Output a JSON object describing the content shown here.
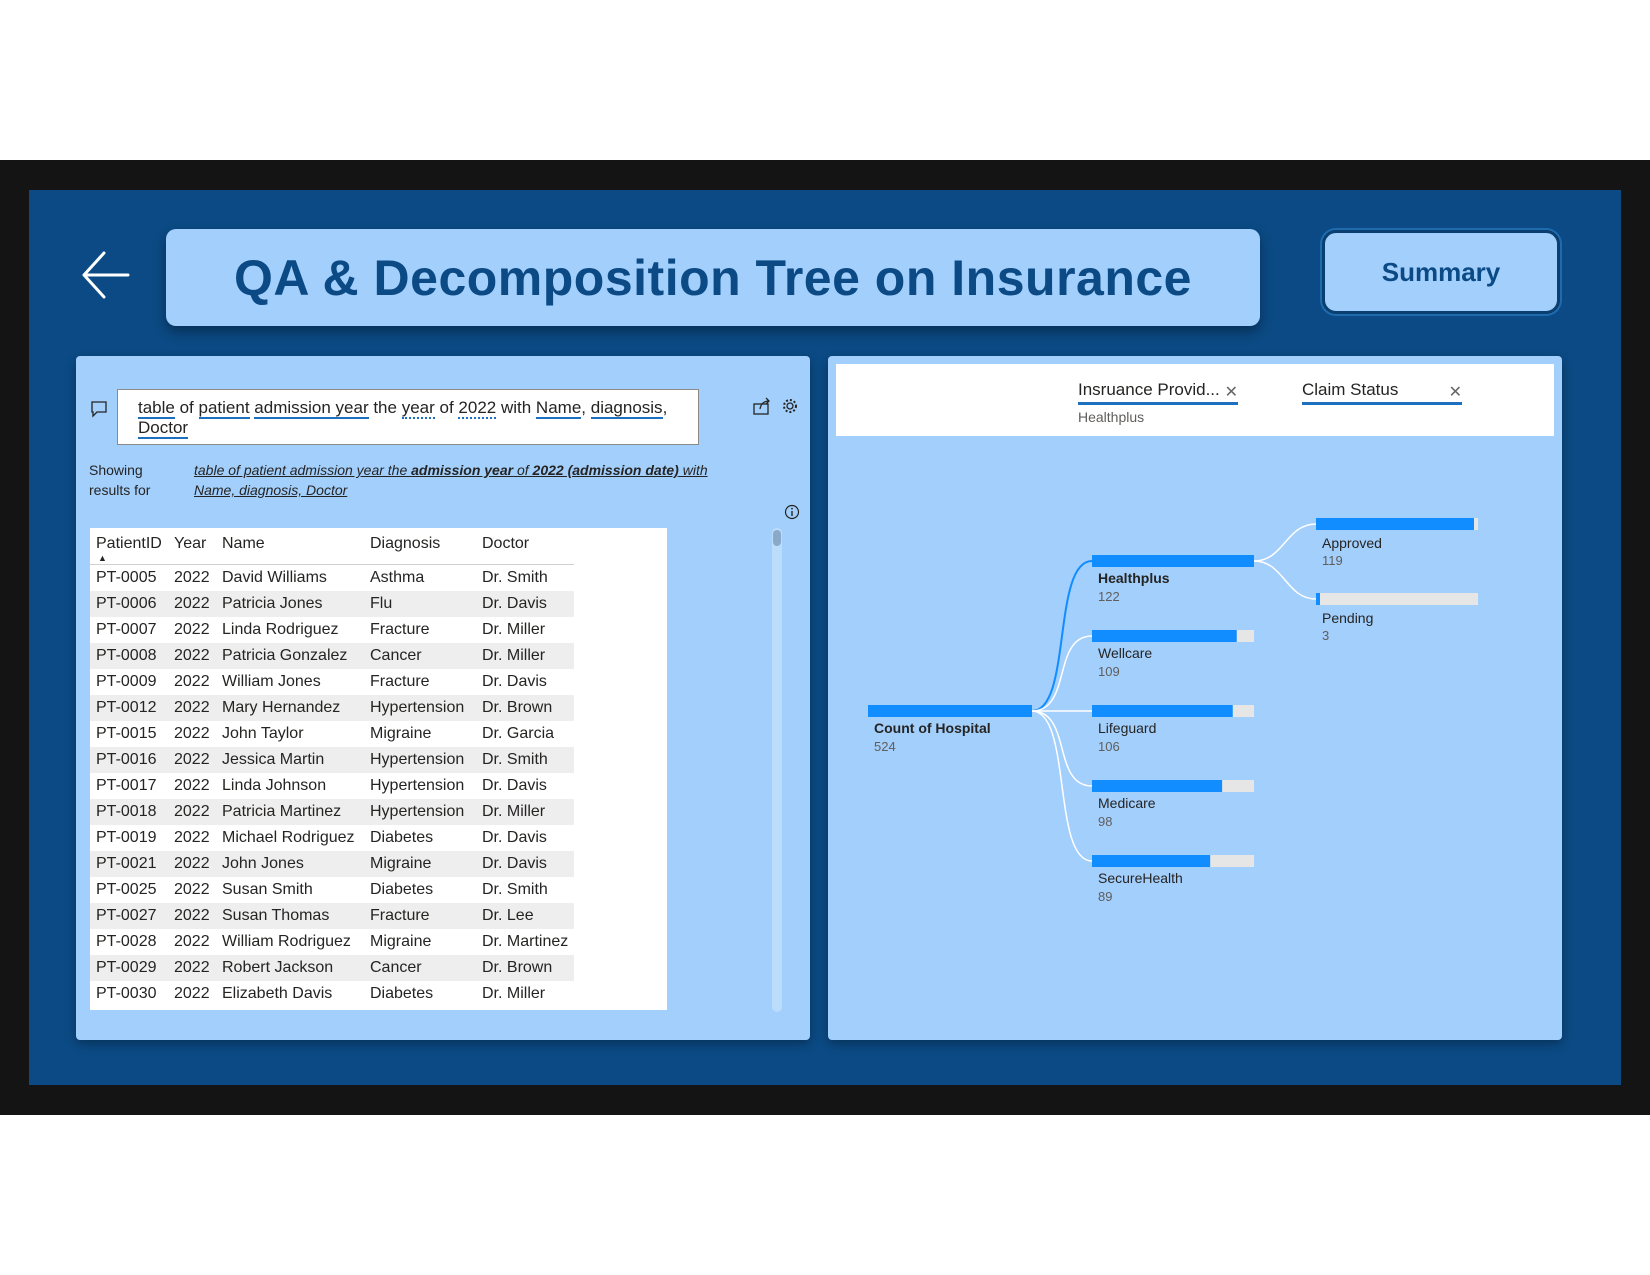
{
  "title": "QA & Decomposition Tree on Insurance",
  "summary_button": "Summary",
  "qa": {
    "query_parts": [
      {
        "text": "table",
        "style": "u"
      },
      {
        "text": " of ",
        "style": ""
      },
      {
        "text": "patient",
        "style": "u"
      },
      {
        "text": " ",
        "style": ""
      },
      {
        "text": "admission year",
        "style": "u"
      },
      {
        "text": " the ",
        "style": ""
      },
      {
        "text": "year",
        "style": "d"
      },
      {
        "text": " of ",
        "style": ""
      },
      {
        "text": "2022",
        "style": "d"
      },
      {
        "text": " with ",
        "style": ""
      },
      {
        "text": "Name",
        "style": "u"
      },
      {
        "text": ", ",
        "style": ""
      },
      {
        "text": "diagnosis",
        "style": "u"
      },
      {
        "text": ", ",
        "style": ""
      },
      {
        "text": "Doctor",
        "style": "u"
      }
    ],
    "showing_label": "Showing results for",
    "showing_result_parts": [
      {
        "text": "table of patient admission year the ",
        "bold": false
      },
      {
        "text": "admission year",
        "bold": true
      },
      {
        "text": " of ",
        "bold": false
      },
      {
        "text": "2022 (admission date)",
        "bold": true
      },
      {
        "text": " with Name, diagnosis, Doctor",
        "bold": false
      }
    ]
  },
  "table": {
    "columns": [
      "PatientID",
      "Year",
      "Name",
      "Diagnosis",
      "Doctor"
    ],
    "rows": [
      [
        "PT-0005",
        "2022",
        "David Williams",
        "Asthma",
        "Dr. Smith"
      ],
      [
        "PT-0006",
        "2022",
        "Patricia Jones",
        "Flu",
        "Dr. Davis"
      ],
      [
        "PT-0007",
        "2022",
        "Linda Rodriguez",
        "Fracture",
        "Dr. Miller"
      ],
      [
        "PT-0008",
        "2022",
        "Patricia Gonzalez",
        "Cancer",
        "Dr. Miller"
      ],
      [
        "PT-0009",
        "2022",
        "William Jones",
        "Fracture",
        "Dr. Davis"
      ],
      [
        "PT-0012",
        "2022",
        "Mary Hernandez",
        "Hypertension",
        "Dr. Brown"
      ],
      [
        "PT-0015",
        "2022",
        "John Taylor",
        "Migraine",
        "Dr. Garcia"
      ],
      [
        "PT-0016",
        "2022",
        "Jessica Martin",
        "Hypertension",
        "Dr. Smith"
      ],
      [
        "PT-0017",
        "2022",
        "Linda Johnson",
        "Hypertension",
        "Dr. Davis"
      ],
      [
        "PT-0018",
        "2022",
        "Patricia Martinez",
        "Hypertension",
        "Dr. Miller"
      ],
      [
        "PT-0019",
        "2022",
        "Michael Rodriguez",
        "Diabetes",
        "Dr. Davis"
      ],
      [
        "PT-0021",
        "2022",
        "John Jones",
        "Migraine",
        "Dr. Davis"
      ],
      [
        "PT-0025",
        "2022",
        "Susan Smith",
        "Diabetes",
        "Dr. Smith"
      ],
      [
        "PT-0027",
        "2022",
        "Susan Thomas",
        "Fracture",
        "Dr. Lee"
      ],
      [
        "PT-0028",
        "2022",
        "William Rodriguez",
        "Migraine",
        "Dr. Martinez"
      ],
      [
        "PT-0029",
        "2022",
        "Robert Jackson",
        "Cancer",
        "Dr. Brown"
      ],
      [
        "PT-0030",
        "2022",
        "Elizabeth Davis",
        "Diabetes",
        "Dr. Miller"
      ]
    ]
  },
  "tree": {
    "levels": [
      {
        "title": "Insruance Provid...",
        "selected": "Healthplus"
      },
      {
        "title": "Claim Status",
        "selected": ""
      }
    ],
    "root": {
      "label": "Count of Hospital",
      "value": 524
    },
    "providers": [
      {
        "label": "Healthplus",
        "value": 122,
        "selected": true
      },
      {
        "label": "Wellcare",
        "value": 109,
        "selected": false
      },
      {
        "label": "Lifeguard",
        "value": 106,
        "selected": false
      },
      {
        "label": "Medicare",
        "value": 98,
        "selected": false
      },
      {
        "label": "SecureHealth",
        "value": 89,
        "selected": false
      }
    ],
    "claim_status": [
      {
        "label": "Approved",
        "value": 119
      },
      {
        "label": "Pending",
        "value": 3
      }
    ]
  },
  "colors": {
    "canvas": "#0b4a84",
    "panel": "#a3cffc",
    "bar": "#118dff",
    "bar_track": "#e6e6e6"
  }
}
